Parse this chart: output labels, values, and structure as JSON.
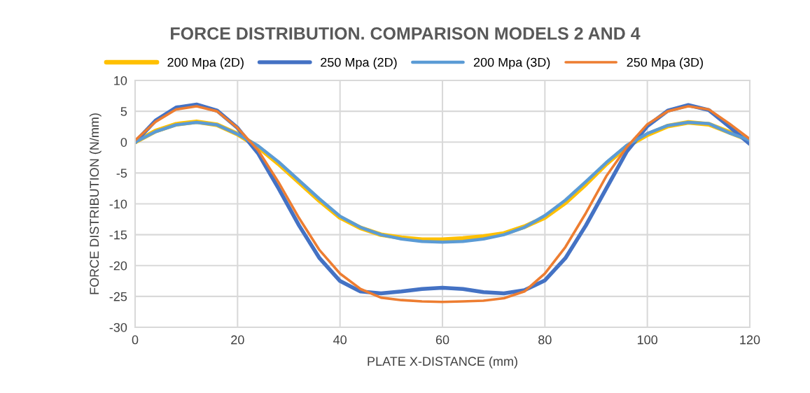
{
  "chart_data": {
    "type": "line",
    "title": "FORCE DISTRIBUTION. COMPARISON MODELS 2 AND 4",
    "xlabel": "PLATE X-DISTANCE (mm)",
    "ylabel": "FORCE DISTRIBUTION (N/mm)",
    "x": [
      0,
      4,
      8,
      12,
      16,
      20,
      24,
      28,
      32,
      36,
      40,
      44,
      48,
      52,
      56,
      60,
      64,
      68,
      72,
      76,
      80,
      84,
      88,
      92,
      96,
      100,
      104,
      108,
      112,
      116,
      120
    ],
    "series": [
      {
        "name": "200 Mpa (2D)",
        "color": "#ffc000",
        "values": [
          0,
          1.8,
          2.9,
          3.3,
          2.8,
          1.3,
          -0.8,
          -3.5,
          -6.5,
          -9.5,
          -12.2,
          -13.9,
          -15.0,
          -15.5,
          -15.8,
          -15.8,
          -15.6,
          -15.3,
          -14.8,
          -13.7,
          -12.2,
          -9.8,
          -6.8,
          -3.5,
          -0.7,
          1.2,
          2.6,
          3.2,
          2.9,
          1.6,
          0.3
        ]
      },
      {
        "name": "250 Mpa (2D)",
        "color": "#4472c4",
        "values": [
          0,
          3.5,
          5.6,
          6.1,
          5.1,
          2.3,
          -1.8,
          -7.5,
          -13.5,
          -18.8,
          -22.5,
          -24.2,
          -24.5,
          -24.2,
          -23.8,
          -23.6,
          -23.8,
          -24.3,
          -24.5,
          -24.0,
          -22.4,
          -18.8,
          -13.5,
          -7.5,
          -1.5,
          2.6,
          5.1,
          6.0,
          5.2,
          2.5,
          -0.3
        ]
      },
      {
        "name": "200 Mpa (3D)",
        "color": "#5b9bd5",
        "values": [
          0,
          1.7,
          2.8,
          3.2,
          2.8,
          1.3,
          -0.6,
          -3.2,
          -6.2,
          -9.2,
          -12.0,
          -13.8,
          -15.0,
          -15.7,
          -16.1,
          -16.2,
          -16.1,
          -15.7,
          -15.0,
          -13.8,
          -11.9,
          -9.4,
          -6.4,
          -3.3,
          -0.5,
          1.4,
          2.7,
          3.2,
          3.0,
          1.5,
          0.3
        ]
      },
      {
        "name": "250 Mpa (3D)",
        "color": "#ed7d31",
        "values": [
          0.3,
          3.3,
          5.3,
          5.8,
          5.0,
          2.3,
          -1.3,
          -6.5,
          -12.3,
          -17.5,
          -21.3,
          -23.8,
          -25.2,
          -25.6,
          -25.8,
          -25.9,
          -25.8,
          -25.7,
          -25.3,
          -24.2,
          -21.3,
          -17.0,
          -11.5,
          -5.5,
          -0.8,
          2.9,
          5.0,
          5.8,
          5.3,
          3.0,
          0.5
        ]
      }
    ],
    "xlim": [
      0,
      120
    ],
    "xticks": [
      0,
      20,
      40,
      60,
      80,
      100,
      120
    ],
    "ylim": [
      -30,
      10
    ],
    "yticks": [
      -30,
      -25,
      -20,
      -15,
      -10,
      -5,
      0,
      5,
      10
    ],
    "grid": true,
    "legend": "top",
    "marker": "none",
    "line_style": "solid"
  }
}
